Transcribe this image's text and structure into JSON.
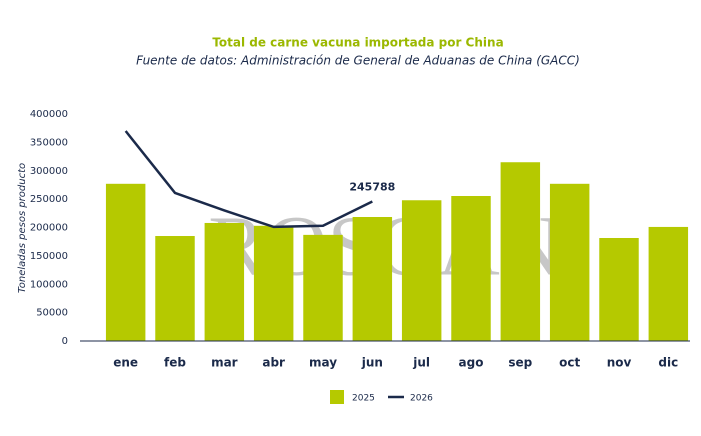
{
  "chart_data": {
    "type": "bar",
    "title": "Total de carne vacuna importada por China",
    "subtitle": "Fuente de datos: Administración de General de Aduanas de China (GACC)",
    "watermark": "ROSGAN",
    "y_label": "Toneladas pesos producto",
    "categories": [
      "ene",
      "feb",
      "mar",
      "abr",
      "may",
      "jun",
      "jul",
      "ago",
      "sep",
      "oct",
      "nov",
      "dic"
    ],
    "series": [
      {
        "name": "2025",
        "type": "bar",
        "color": "#b5c900",
        "values": [
          277000,
          185000,
          208000,
          203000,
          187000,
          218500,
          248000,
          255500,
          315000,
          277000,
          181500,
          201000
        ]
      },
      {
        "name": "2026",
        "type": "line",
        "color": "#1b2a4a",
        "values": [
          370000,
          261000,
          230000,
          201000,
          203000,
          245788,
          null,
          null,
          null,
          null,
          null,
          null
        ]
      }
    ],
    "ylim": [
      0,
      400000
    ],
    "yticks": [
      0,
      50000,
      100000,
      150000,
      200000,
      250000,
      300000,
      350000,
      400000
    ]
  }
}
